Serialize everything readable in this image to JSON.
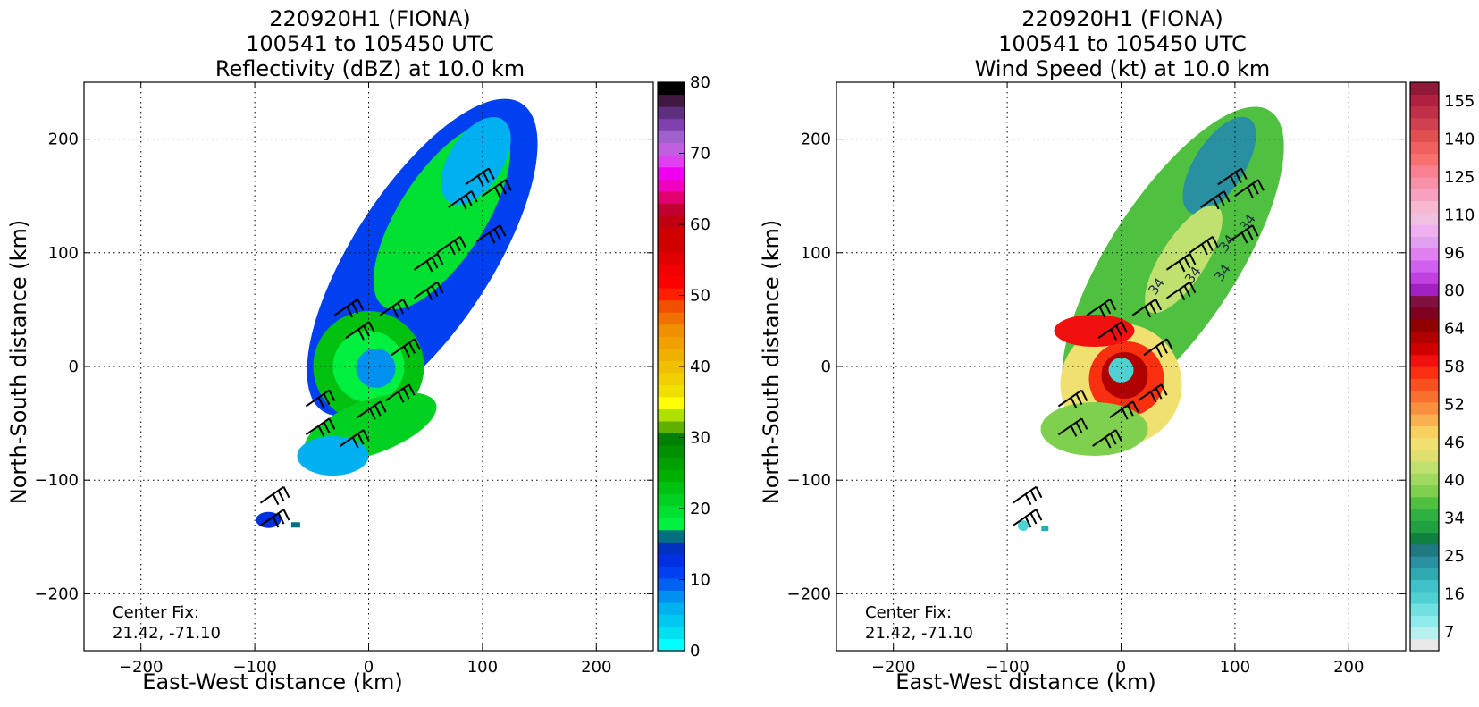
{
  "chart_data": [
    {
      "type": "heatmap",
      "title_lines": [
        "220920H1 (FIONA)",
        "100541 to 105450 UTC",
        "Reflectivity (dBZ) at 10.0 km"
      ],
      "xlabel": "East-West distance (km)",
      "ylabel": "North-South distance (km)",
      "xlim": [
        -250,
        250
      ],
      "ylim": [
        -250,
        250
      ],
      "x_ticks": [
        -200,
        -100,
        0,
        100,
        200
      ],
      "y_ticks": [
        -200,
        -100,
        0,
        100,
        200
      ],
      "x_tick_labels": [
        "−200",
        "−100",
        "0",
        "100",
        "200"
      ],
      "y_tick_labels": [
        "−200",
        "−100",
        "0",
        "100",
        "200"
      ],
      "grid": true,
      "annotation_lines": [
        "Center Fix:",
        "21.42, -71.10"
      ],
      "colorbar": {
        "ticks": [
          0,
          10,
          20,
          30,
          40,
          50,
          60,
          70,
          80
        ],
        "tick_labels": [
          "0",
          "10",
          "20",
          "30",
          "40",
          "50",
          "60",
          "70",
          "80"
        ],
        "colors": [
          "#00ffff",
          "#00e0f0",
          "#00c8f0",
          "#00b0f0",
          "#0090f0",
          "#0060f0",
          "#0040f0",
          "#0030e0",
          "#0030c0",
          "#007080",
          "#00f040",
          "#00e030",
          "#00d020",
          "#00c010",
          "#00b000",
          "#00a000",
          "#009000",
          "#008000",
          "#60b000",
          "#b0e000",
          "#ffff00",
          "#f0e000",
          "#f0d000",
          "#f0c000",
          "#f0b000",
          "#f0a000",
          "#f09000",
          "#f07000",
          "#f05000",
          "#ff2000",
          "#ff0000",
          "#f00000",
          "#e00000",
          "#d00000",
          "#d00000",
          "#c00010",
          "#c00030",
          "#e00070",
          "#f000c0",
          "#f000f0",
          "#e040f0",
          "#c060e0",
          "#a060d0",
          "#8040b0",
          "#603080",
          "#401840",
          "#000000"
        ]
      },
      "center": [
        0,
        0
      ],
      "band_axis": [
        1,
        1.55
      ]
    },
    {
      "type": "heatmap",
      "title_lines": [
        "220920H1 (FIONA)",
        "100541 to 105450 UTC",
        "Wind Speed (kt) at 10.0 km"
      ],
      "xlabel": "East-West distance (km)",
      "ylabel": "North-South distance (km)",
      "xlim": [
        -250,
        250
      ],
      "ylim": [
        -250,
        250
      ],
      "x_ticks": [
        -200,
        -100,
        0,
        100,
        200
      ],
      "y_ticks": [
        -200,
        -100,
        0,
        100,
        200
      ],
      "x_tick_labels": [
        "−200",
        "−100",
        "0",
        "100",
        "200"
      ],
      "y_tick_labels": [
        "−200",
        "−100",
        "0",
        "100",
        "200"
      ],
      "grid": true,
      "annotation_lines": [
        "Center Fix:",
        "21.42, -71.10"
      ],
      "contour_labels": [
        "34",
        "34",
        "34",
        "34",
        "34"
      ],
      "colorbar": {
        "tick_labels": [
          "7",
          "16",
          "25",
          "34",
          "40",
          "46",
          "52",
          "58",
          "64",
          "80",
          "96",
          "110",
          "125",
          "140",
          "155"
        ],
        "colors": [
          "#e8e8e8",
          "#b8f0f0",
          "#90ecec",
          "#70e0e0",
          "#50d0d0",
          "#40c0c8",
          "#30a8b0",
          "#2890a0",
          "#207880",
          "#108040",
          "#20a040",
          "#30b040",
          "#50c040",
          "#80d050",
          "#a0d860",
          "#c0e070",
          "#e0e070",
          "#f0e070",
          "#f8d060",
          "#f8b050",
          "#f89040",
          "#f87030",
          "#f85020",
          "#f83010",
          "#f01010",
          "#d00000",
          "#b00000",
          "#900000",
          "#800020",
          "#801040",
          "#a020c0",
          "#c040e0",
          "#d060f0",
          "#e080f0",
          "#e0a0f0",
          "#f0b0f0",
          "#f0c0e0",
          "#f8b8d0",
          "#f8a0c0",
          "#f890a8",
          "#f88090",
          "#f87070",
          "#f06060",
          "#e05050",
          "#d04050",
          "#c03048",
          "#b02040",
          "#901838"
        ]
      },
      "center": [
        0,
        0
      ],
      "band_axis": [
        1,
        1.55
      ]
    }
  ]
}
